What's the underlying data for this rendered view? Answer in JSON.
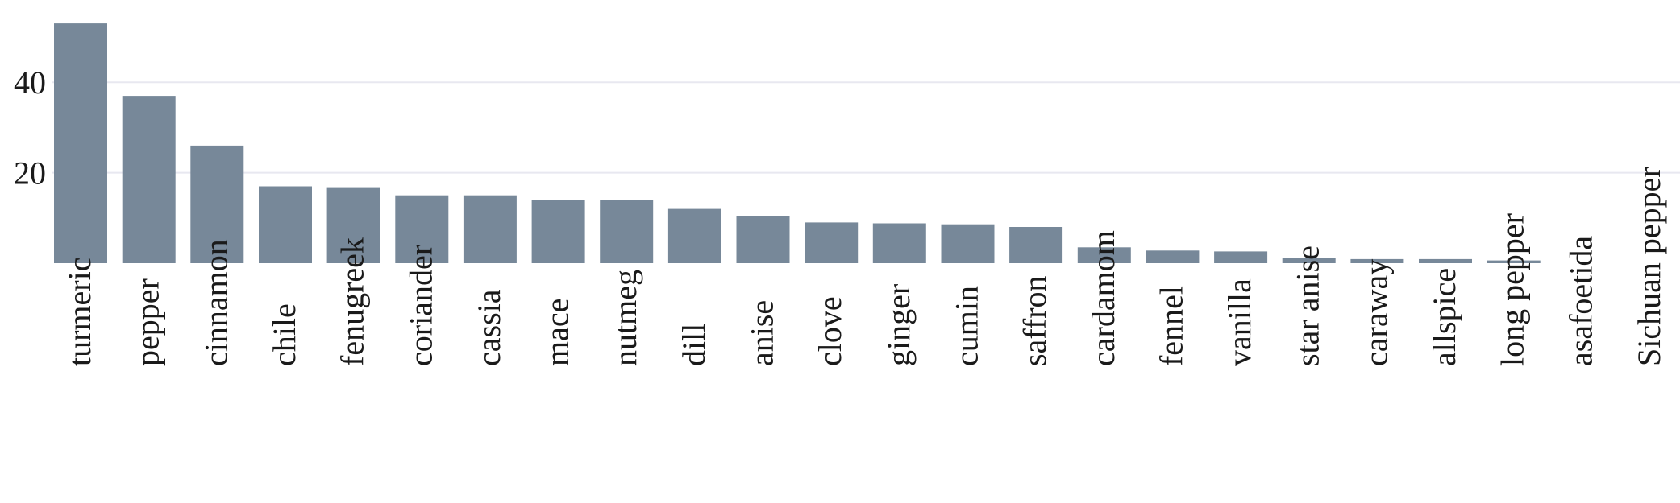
{
  "chart_data": {
    "type": "bar",
    "title": "",
    "xlabel": "",
    "ylabel": "",
    "categories": [
      "turmeric",
      "pepper",
      "cinnamon",
      "chile",
      "fenugreek",
      "coriander",
      "cassia",
      "mace",
      "nutmeg",
      "dill",
      "anise",
      "clove",
      "ginger",
      "cumin",
      "saffron",
      "cardamom",
      "fennel",
      "vanilla",
      "star anise",
      "caraway",
      "allspice",
      "long pepper",
      "asafoetida",
      "Sichuan pepper"
    ],
    "values": [
      53,
      37,
      26,
      17,
      16.8,
      15,
      15,
      14,
      14,
      12,
      10.5,
      9,
      8.8,
      8.6,
      8,
      3.5,
      2.8,
      2.6,
      1.2,
      0.9,
      0.9,
      0.6,
      0,
      0
    ],
    "ylim": [
      0,
      55
    ],
    "yticks": [
      20,
      40
    ],
    "ytick_labels": [
      "20",
      "40"
    ],
    "grid": true,
    "bar_color": "#778899"
  }
}
